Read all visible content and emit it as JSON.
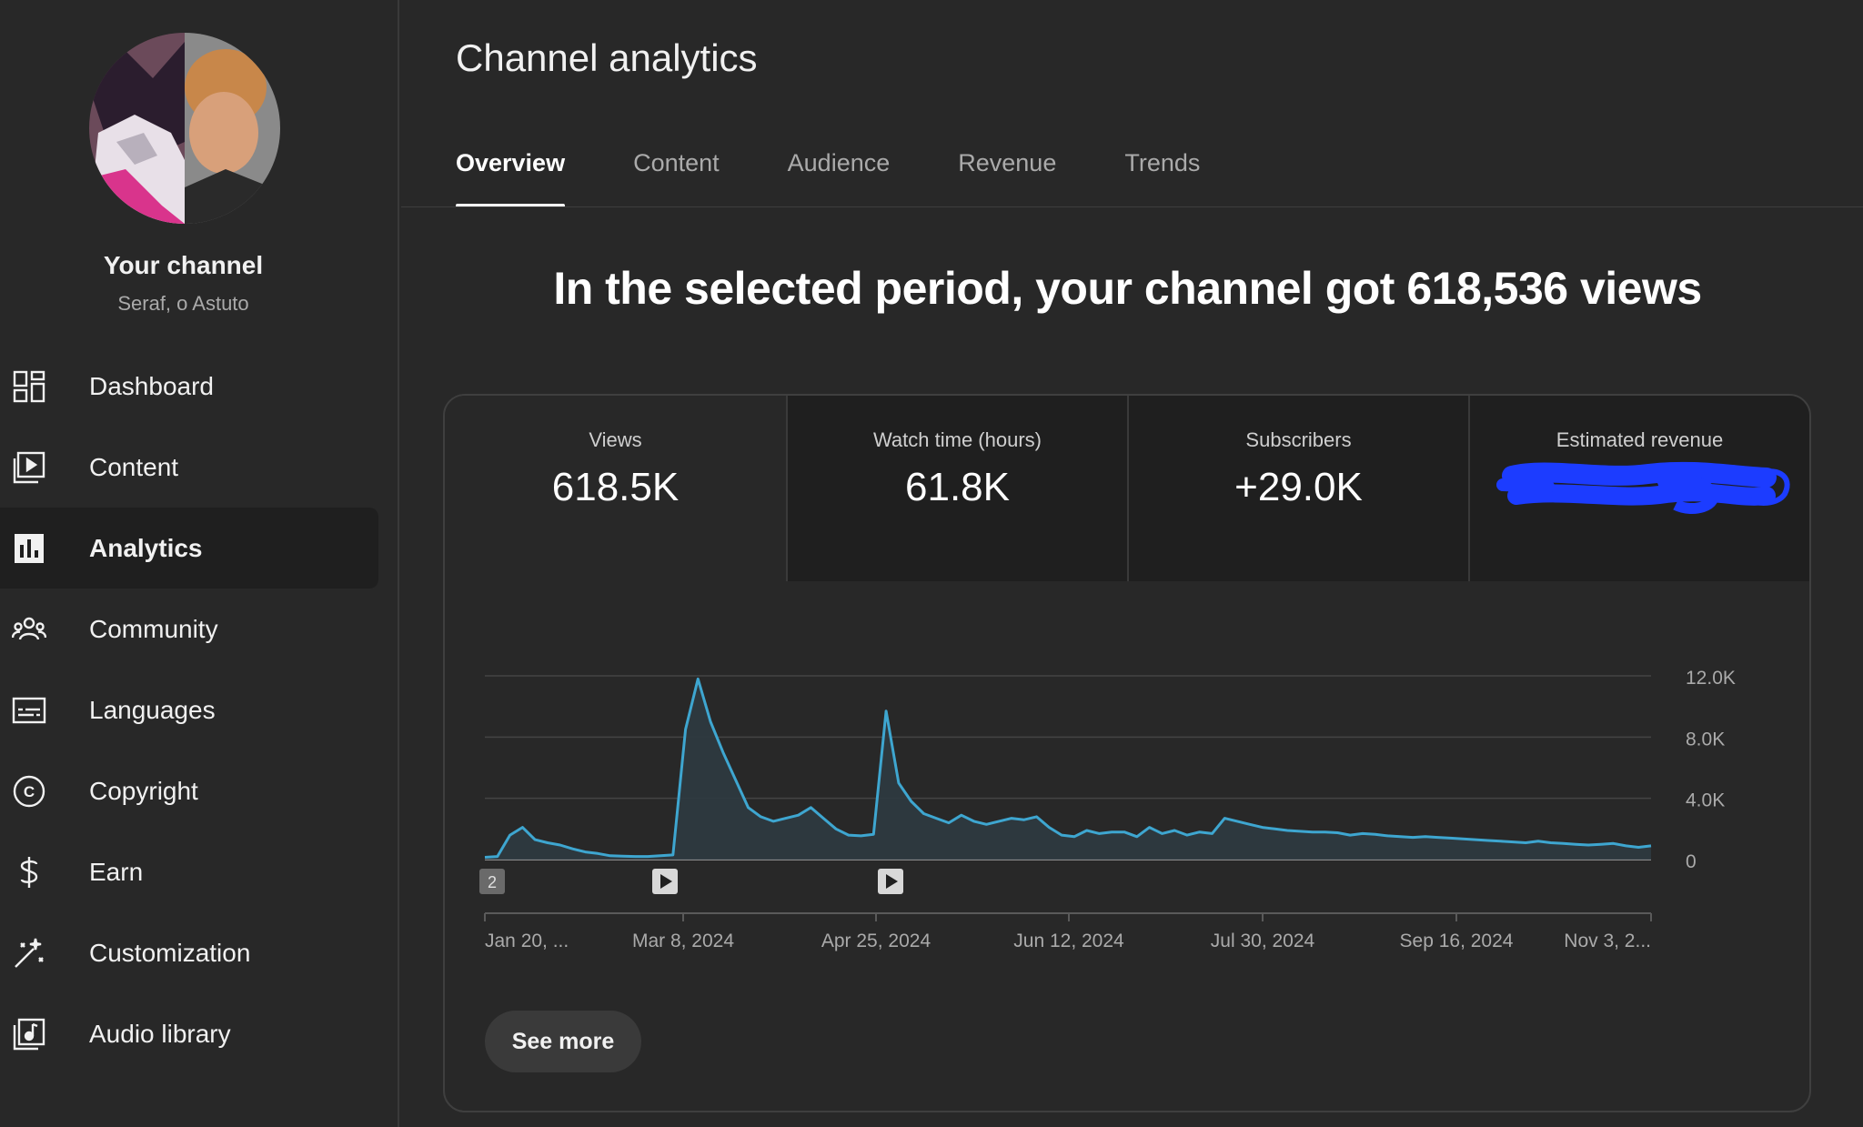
{
  "sidebar": {
    "channel_title": "Your channel",
    "channel_name": "Seraf, o Astuto",
    "items": [
      {
        "label": "Dashboard",
        "icon": "dashboard-icon"
      },
      {
        "label": "Content",
        "icon": "content-icon"
      },
      {
        "label": "Analytics",
        "icon": "analytics-icon",
        "active": true
      },
      {
        "label": "Community",
        "icon": "community-icon"
      },
      {
        "label": "Languages",
        "icon": "languages-icon"
      },
      {
        "label": "Copyright",
        "icon": "copyright-icon"
      },
      {
        "label": "Earn",
        "icon": "earn-icon"
      },
      {
        "label": "Customization",
        "icon": "customization-icon"
      },
      {
        "label": "Audio library",
        "icon": "audio-library-icon"
      }
    ]
  },
  "header": {
    "title": "Channel analytics",
    "tabs": [
      {
        "label": "Overview",
        "active": true
      },
      {
        "label": "Content"
      },
      {
        "label": "Audience"
      },
      {
        "label": "Revenue"
      },
      {
        "label": "Trends"
      }
    ]
  },
  "headline": "In the selected period, your channel got 618,536 views",
  "metrics": [
    {
      "label": "Views",
      "value": "618.5K",
      "selected": true
    },
    {
      "label": "Watch time (hours)",
      "value": "61.8K"
    },
    {
      "label": "Subscribers",
      "value": "+29.0K"
    },
    {
      "label": "Estimated revenue",
      "value": "",
      "redacted": true
    }
  ],
  "colors": {
    "line": "#3ea6d0",
    "area": "#2d3a40",
    "redaction": "#1c3cff",
    "background": "#282828"
  },
  "chart_data": {
    "type": "area",
    "yticks": [
      "12.0K",
      "8.0K",
      "4.0K",
      "0"
    ],
    "ylim": [
      0,
      12000
    ],
    "xticks": [
      "Jan 20, ...",
      "Mar 8, 2024",
      "Apr 25, 2024",
      "Jun 12, 2024",
      "Jul 30, 2024",
      "Sep 16, 2024",
      "Nov 3, 2..."
    ],
    "markers": [
      {
        "label": "2",
        "type": "count"
      },
      {
        "label": "",
        "type": "video"
      },
      {
        "label": "",
        "type": "video"
      }
    ],
    "grid": true,
    "series": [
      {
        "values": [
          150,
          200,
          1600,
          2100,
          1300,
          1100,
          950,
          700,
          500,
          400,
          250,
          220,
          200,
          200,
          250,
          300,
          8500,
          11800,
          9000,
          7000,
          5200,
          3400,
          2800,
          2500,
          2700,
          2900,
          3400,
          2700,
          2000,
          1600,
          1550,
          1650,
          9700,
          5000,
          3800,
          3000,
          2700,
          2400,
          2900,
          2500,
          2300,
          2500,
          2700,
          2600,
          2800,
          2100,
          1600,
          1500,
          1900,
          1700,
          1800,
          1800,
          1500,
          2100,
          1700,
          1900,
          1600,
          1800,
          1700,
          2700,
          2500,
          2300,
          2100,
          2000,
          1900,
          1850,
          1800,
          1800,
          1750,
          1600,
          1700,
          1650,
          1550,
          1500,
          1450,
          1500,
          1450,
          1400,
          1350,
          1300,
          1250,
          1200,
          1150,
          1100,
          1200,
          1100,
          1050,
          1000,
          950,
          1000,
          1050,
          900,
          800,
          900
        ]
      }
    ]
  }
}
